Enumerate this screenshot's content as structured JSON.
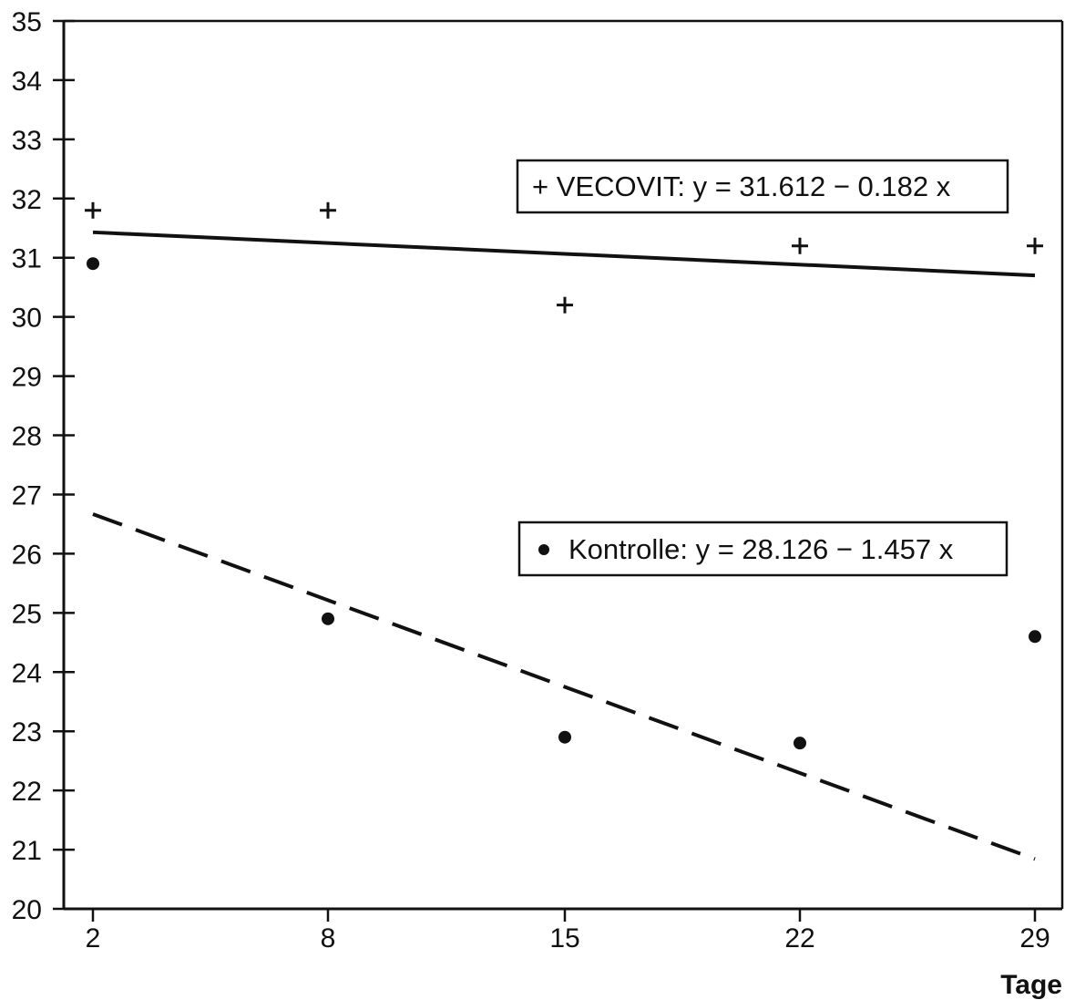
{
  "chart_data": {
    "type": "scatter",
    "title": "",
    "xlabel": "Tage",
    "ylabel": "",
    "categories": [
      "2",
      "8",
      "15",
      "22",
      "29"
    ],
    "x": [
      2,
      8,
      15,
      22,
      29
    ],
    "ylim": [
      20,
      35
    ],
    "yticks": [
      20,
      21,
      22,
      23,
      24,
      25,
      26,
      27,
      28,
      29,
      30,
      31,
      32,
      33,
      34,
      35
    ],
    "grid": false,
    "series": [
      {
        "name": "VECOVIT",
        "marker": "plus",
        "values": [
          31.8,
          31.8,
          30.2,
          31.2,
          31.2
        ],
        "fit": {
          "label": "+ VECOVIT: y = 31.612 − 0.182 x",
          "intercept": 31.612,
          "slope": -0.182,
          "style": "solid"
        }
      },
      {
        "name": "Kontrolle",
        "marker": "dot",
        "values": [
          30.9,
          24.9,
          22.9,
          22.8,
          24.6
        ],
        "fit": {
          "label": "Kontrolle: y = 28.126 − 1.457 x",
          "intercept": 28.126,
          "slope": -1.457,
          "style": "dashed"
        }
      }
    ],
    "legend": [
      {
        "series": "VECOVIT",
        "text": "+ VECOVIT: y = 31.612 − 0.182 x"
      },
      {
        "series": "Kontrolle",
        "text": "Kontrolle: y = 28.126 − 1.457 x"
      }
    ],
    "colors": {
      "ink": "#111111",
      "background": "#ffffff"
    }
  }
}
